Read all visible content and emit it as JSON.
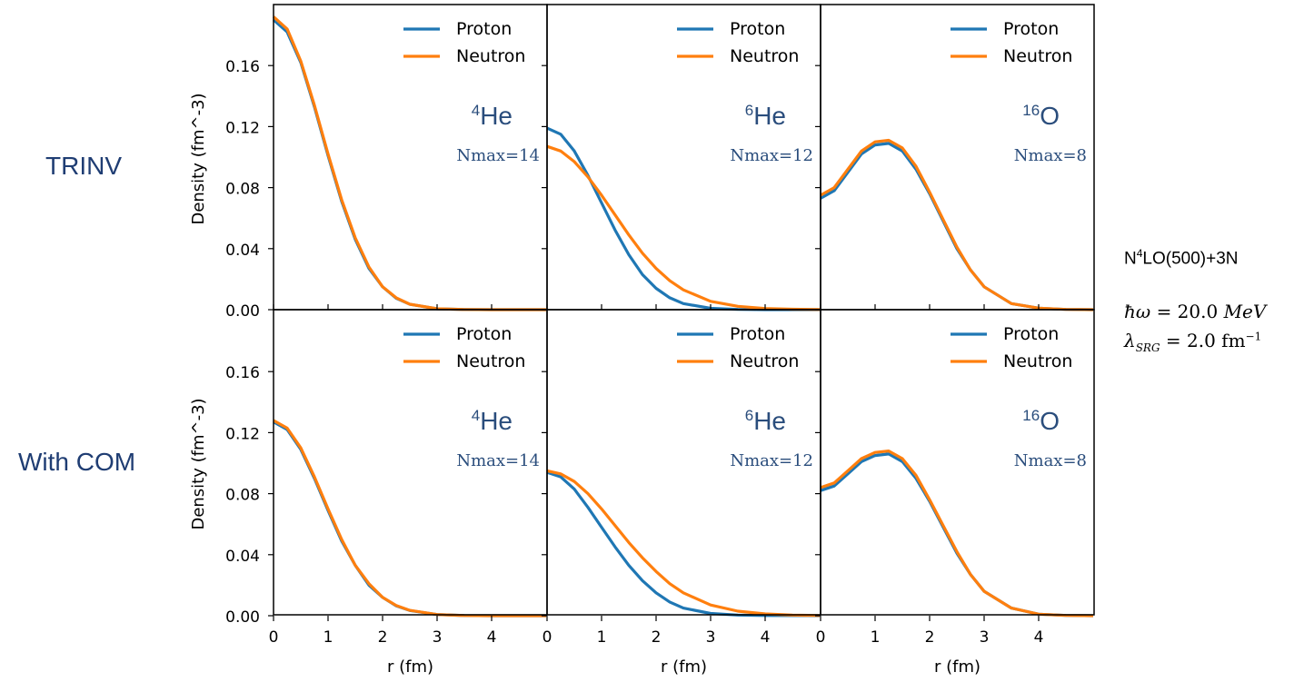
{
  "row_labels": [
    "TRINV",
    "With COM"
  ],
  "side": {
    "model_prefix": "N",
    "model_sup": "4",
    "model_suffix": "LO(500)+3N",
    "hw_symbol": "ħω",
    "hw_value": "= 20.0",
    "hw_unit": "MeV",
    "lambda_symbol": "λ",
    "lambda_sub": "SRG",
    "lambda_value": "= 2.0 fm",
    "lambda_exp": "−1"
  },
  "colors": {
    "proton": "#1f77b4",
    "neutron": "#ff7f0e",
    "nucleus_label": "#2a4d7c"
  },
  "chart_data": {
    "type": "line",
    "ylabel": "Density (fm^-3)",
    "xlabel": "r (fm)",
    "xlim": [
      0,
      5
    ],
    "ylim": [
      0,
      0.2
    ],
    "xticks": [
      "0",
      "1",
      "2",
      "3",
      "4"
    ],
    "yticks": [
      "0.00",
      "0.04",
      "0.08",
      "0.12",
      "0.16"
    ],
    "legend": [
      "Proton",
      "Neutron"
    ],
    "legend_position": "top-right",
    "panels": [
      {
        "row": 0,
        "col": 0,
        "mass": "4",
        "element": "He",
        "nmax": "Nmax=14",
        "series": [
          {
            "name": "Proton",
            "r": [
              0,
              0.25,
              0.5,
              0.75,
              1.0,
              1.25,
              1.5,
              1.75,
              2.0,
              2.25,
              2.5,
              3.0,
              3.5,
              4.0,
              5.0
            ],
            "values": [
              0.19,
              0.182,
              0.162,
              0.133,
              0.101,
              0.071,
              0.046,
              0.027,
              0.015,
              0.0075,
              0.0035,
              0.0006,
              0.0001,
              0,
              0
            ]
          },
          {
            "name": "Neutron",
            "r": [
              0,
              0.25,
              0.5,
              0.75,
              1.0,
              1.25,
              1.5,
              1.75,
              2.0,
              2.25,
              2.5,
              3.0,
              3.5,
              4.0,
              5.0
            ],
            "values": [
              0.192,
              0.184,
              0.163,
              0.134,
              0.102,
              0.072,
              0.047,
              0.028,
              0.015,
              0.0078,
              0.0036,
              0.0006,
              0.0001,
              0,
              0
            ]
          }
        ]
      },
      {
        "row": 0,
        "col": 1,
        "mass": "6",
        "element": "He",
        "nmax": "Nmax=12",
        "series": [
          {
            "name": "Proton",
            "r": [
              0,
              0.25,
              0.5,
              0.75,
              1.0,
              1.25,
              1.5,
              1.75,
              2.0,
              2.25,
              2.5,
              3.0,
              3.5,
              4.0,
              5.0
            ],
            "values": [
              0.119,
              0.115,
              0.104,
              0.088,
              0.07,
              0.052,
              0.036,
              0.023,
              0.014,
              0.0078,
              0.004,
              0.0009,
              0.0002,
              0,
              0
            ]
          },
          {
            "name": "Neutron",
            "r": [
              0,
              0.25,
              0.5,
              0.75,
              1.0,
              1.25,
              1.5,
              1.75,
              2.0,
              2.25,
              2.5,
              3.0,
              3.5,
              4.0,
              4.5,
              5.0
            ],
            "values": [
              0.107,
              0.104,
              0.097,
              0.087,
              0.075,
              0.062,
              0.049,
              0.037,
              0.027,
              0.019,
              0.013,
              0.0055,
              0.0022,
              0.0008,
              0.0003,
              0.0001
            ]
          }
        ]
      },
      {
        "row": 0,
        "col": 2,
        "mass": "16",
        "element": "O",
        "nmax": "Nmax=8",
        "series": [
          {
            "name": "Proton",
            "r": [
              0,
              0.25,
              0.5,
              0.75,
              1.0,
              1.25,
              1.5,
              1.75,
              2.0,
              2.25,
              2.5,
              2.75,
              3.0,
              3.5,
              4.0,
              4.5,
              5.0
            ],
            "values": [
              0.073,
              0.078,
              0.09,
              0.102,
              0.108,
              0.109,
              0.104,
              0.092,
              0.076,
              0.058,
              0.04,
              0.026,
              0.015,
              0.004,
              0.001,
              0.0002,
              0
            ]
          },
          {
            "name": "Neutron",
            "r": [
              0,
              0.25,
              0.5,
              0.75,
              1.0,
              1.25,
              1.5,
              1.75,
              2.0,
              2.25,
              2.5,
              2.75,
              3.0,
              3.5,
              4.0,
              4.5,
              5.0
            ],
            "values": [
              0.075,
              0.08,
              0.092,
              0.104,
              0.11,
              0.111,
              0.106,
              0.094,
              0.077,
              0.059,
              0.041,
              0.026,
              0.015,
              0.004,
              0.001,
              0.0002,
              0
            ]
          }
        ]
      },
      {
        "row": 1,
        "col": 0,
        "mass": "4",
        "element": "He",
        "nmax": "Nmax=14",
        "series": [
          {
            "name": "Proton",
            "r": [
              0,
              0.25,
              0.5,
              0.75,
              1.0,
              1.25,
              1.5,
              1.75,
              2.0,
              2.25,
              2.5,
              3.0,
              3.5,
              4.0,
              5.0
            ],
            "values": [
              0.127,
              0.122,
              0.109,
              0.09,
              0.069,
              0.049,
              0.033,
              0.02,
              0.012,
              0.0065,
              0.0034,
              0.0008,
              0.0001,
              0,
              0
            ]
          },
          {
            "name": "Neutron",
            "r": [
              0,
              0.25,
              0.5,
              0.75,
              1.0,
              1.25,
              1.5,
              1.75,
              2.0,
              2.25,
              2.5,
              3.0,
              3.5,
              4.0,
              5.0
            ],
            "values": [
              0.128,
              0.123,
              0.11,
              0.091,
              0.07,
              0.05,
              0.033,
              0.021,
              0.012,
              0.0067,
              0.0035,
              0.0008,
              0.0001,
              0,
              0
            ]
          }
        ]
      },
      {
        "row": 1,
        "col": 1,
        "mass": "6",
        "element": "He",
        "nmax": "Nmax=12",
        "series": [
          {
            "name": "Proton",
            "r": [
              0,
              0.25,
              0.5,
              0.75,
              1.0,
              1.25,
              1.5,
              1.75,
              2.0,
              2.25,
              2.5,
              3.0,
              3.5,
              4.0,
              5.0
            ],
            "values": [
              0.094,
              0.091,
              0.083,
              0.071,
              0.058,
              0.045,
              0.033,
              0.023,
              0.015,
              0.009,
              0.005,
              0.0015,
              0.0004,
              0.0001,
              0
            ]
          },
          {
            "name": "Neutron",
            "r": [
              0,
              0.25,
              0.5,
              0.75,
              1.0,
              1.25,
              1.5,
              1.75,
              2.0,
              2.25,
              2.5,
              3.0,
              3.5,
              4.0,
              4.5,
              5.0
            ],
            "values": [
              0.095,
              0.093,
              0.088,
              0.08,
              0.07,
              0.059,
              0.048,
              0.038,
              0.029,
              0.021,
              0.015,
              0.007,
              0.003,
              0.0012,
              0.0004,
              0.0001
            ]
          }
        ]
      },
      {
        "row": 1,
        "col": 2,
        "mass": "16",
        "element": "O",
        "nmax": "Nmax=8",
        "series": [
          {
            "name": "Proton",
            "r": [
              0,
              0.25,
              0.5,
              0.75,
              1.0,
              1.25,
              1.5,
              1.75,
              2.0,
              2.25,
              2.5,
              2.75,
              3.0,
              3.5,
              4.0,
              4.5,
              5.0
            ],
            "values": [
              0.082,
              0.085,
              0.093,
              0.101,
              0.105,
              0.106,
              0.101,
              0.09,
              0.075,
              0.058,
              0.041,
              0.027,
              0.016,
              0.005,
              0.001,
              0.0002,
              0
            ]
          },
          {
            "name": "Neutron",
            "r": [
              0,
              0.25,
              0.5,
              0.75,
              1.0,
              1.25,
              1.5,
              1.75,
              2.0,
              2.25,
              2.5,
              2.75,
              3.0,
              3.5,
              4.0,
              4.5,
              5.0
            ],
            "values": [
              0.084,
              0.087,
              0.095,
              0.103,
              0.107,
              0.108,
              0.103,
              0.092,
              0.076,
              0.059,
              0.042,
              0.027,
              0.016,
              0.005,
              0.001,
              0.0002,
              0
            ]
          }
        ]
      }
    ]
  }
}
